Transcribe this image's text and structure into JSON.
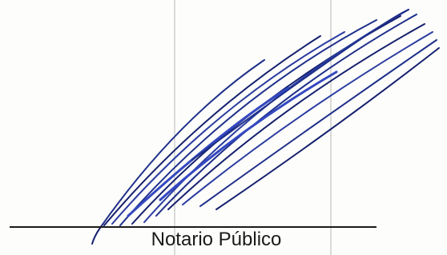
{
  "signature_block": {
    "label": "Notario Público"
  }
}
